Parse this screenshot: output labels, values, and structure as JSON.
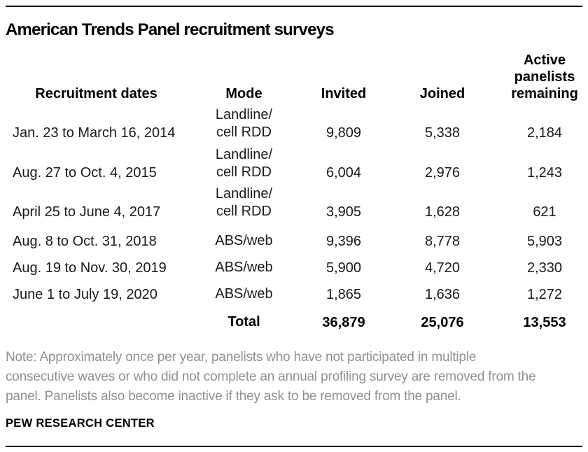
{
  "header": {
    "title": "American Trends Panel recruitment surveys"
  },
  "table": {
    "headers": {
      "dates": "Recruitment dates",
      "mode": "Mode",
      "invited": "Invited",
      "joined": "Joined",
      "active": "Active\npanelists\nremaining"
    },
    "rows": [
      {
        "dates": "Jan. 23 to March 16, 2014",
        "mode": "Landline/\ncell RDD",
        "invited": "9,809",
        "joined": "5,338",
        "active": "2,184"
      },
      {
        "dates": "Aug. 27 to Oct. 4, 2015",
        "mode": "Landline/\ncell RDD",
        "invited": "6,004",
        "joined": "2,976",
        "active": "1,243"
      },
      {
        "dates": "April 25 to June 4, 2017",
        "mode": "Landline/\ncell RDD",
        "invited": "3,905",
        "joined": "1,628",
        "active": "621"
      },
      {
        "dates": "Aug. 8 to Oct. 31, 2018",
        "mode": "ABS/web",
        "invited": "9,396",
        "joined": "8,778",
        "active": "5,903"
      },
      {
        "dates": "Aug. 19 to Nov. 30, 2019",
        "mode": "ABS/web",
        "invited": "5,900",
        "joined": "4,720",
        "active": "2,330"
      },
      {
        "dates": "June 1 to July 19, 2020",
        "mode": "ABS/web",
        "invited": "1,865",
        "joined": "1,636",
        "active": "1,272"
      }
    ],
    "total": {
      "label": "Total",
      "invited": "36,879",
      "joined": "25,076",
      "active": "13,553"
    }
  },
  "footer": {
    "note": "Note: Approximately once per year, panelists who have not participated in multiple\nconsecutive waves or who did not complete an annual profiling survey are removed from the\npanel. Panelists also become inactive if they ask to be removed from the panel.",
    "source": "PEW RESEARCH CENTER"
  },
  "colors": {
    "text": "#000000",
    "note_gray": "#8f9193",
    "rule": "#000000",
    "background": "#ffffff"
  },
  "chart_data": {
    "type": "table",
    "title": "American Trends Panel recruitment surveys",
    "columns": [
      "Recruitment dates",
      "Mode",
      "Invited",
      "Joined",
      "Active panelists remaining"
    ],
    "rows": [
      [
        "Jan. 23 to March 16, 2014",
        "Landline/cell RDD",
        9809,
        5338,
        2184
      ],
      [
        "Aug. 27 to Oct. 4, 2015",
        "Landline/cell RDD",
        6004,
        2976,
        1243
      ],
      [
        "April 25 to June 4, 2017",
        "Landline/cell RDD",
        3905,
        1628,
        621
      ],
      [
        "Aug. 8 to Oct. 31, 2018",
        "ABS/web",
        9396,
        8778,
        5903
      ],
      [
        "Aug. 19 to Nov. 30, 2019",
        "ABS/web",
        5900,
        4720,
        2330
      ],
      [
        "June 1 to July 19, 2020",
        "ABS/web",
        1865,
        1636,
        1272
      ]
    ],
    "total_row": [
      "",
      "Total",
      36879,
      25076,
      13553
    ],
    "note": "Note: Approximately once per year, panelists who have not participated in multiple consecutive waves or who did not complete an annual profiling survey are removed from the panel. Panelists also become inactive if they ask to be removed from the panel.",
    "source": "PEW RESEARCH CENTER"
  }
}
